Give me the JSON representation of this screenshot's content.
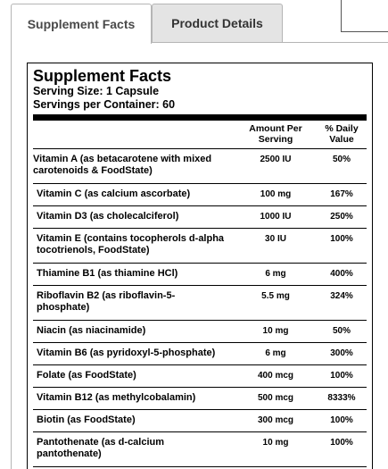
{
  "tabs": {
    "supplement_facts": "Supplement Facts",
    "product_details": "Product Details"
  },
  "facts": {
    "title": "Supplement Facts",
    "serving_size": "Serving Size: 1 Capsule",
    "servings_per_container": "Servings per Container: 60",
    "header_amount": "Amount Per Serving",
    "header_dv": "% Daily Value",
    "rows": [
      {
        "name": "Vitamin A (as betacarotene with mixed carotenoids & FoodState)",
        "amount": "2500 IU",
        "dv": "50%"
      },
      {
        "name": "Vitamin C (as calcium ascorbate)",
        "amount": "100 mg",
        "dv": "167%"
      },
      {
        "name": "Vitamin D3 (as cholecalciferol)",
        "amount": "1000 IU",
        "dv": "250%"
      },
      {
        "name": "Vitamin E (contains tocopherols d-alpha tocotrienols, FoodState)",
        "amount": "30 IU",
        "dv": "100%"
      },
      {
        "name": "Thiamine B1 (as thiamine HCl)",
        "amount": "6 mg",
        "dv": "400%"
      },
      {
        "name": "Riboflavin B2 (as riboflavin-5-phosphate)",
        "amount": "5.5 mg",
        "dv": "324%"
      },
      {
        "name": "Niacin (as niacinamide)",
        "amount": "10 mg",
        "dv": "50%"
      },
      {
        "name": "Vitamin B6 (as pyridoxyl-5-phosphate)",
        "amount": "6 mg",
        "dv": "300%"
      },
      {
        "name": "Folate (as FoodState)",
        "amount": "400 mcg",
        "dv": "100%"
      },
      {
        "name": "Vitamin B12 (as methylcobalamin)",
        "amount": "500 mcg",
        "dv": "8333%"
      },
      {
        "name": "Biotin (as FoodState)",
        "amount": "300 mcg",
        "dv": "100%"
      },
      {
        "name": "Pantothenate (as d-calcium pantothenate)",
        "amount": "10 mg",
        "dv": "100%"
      }
    ]
  }
}
